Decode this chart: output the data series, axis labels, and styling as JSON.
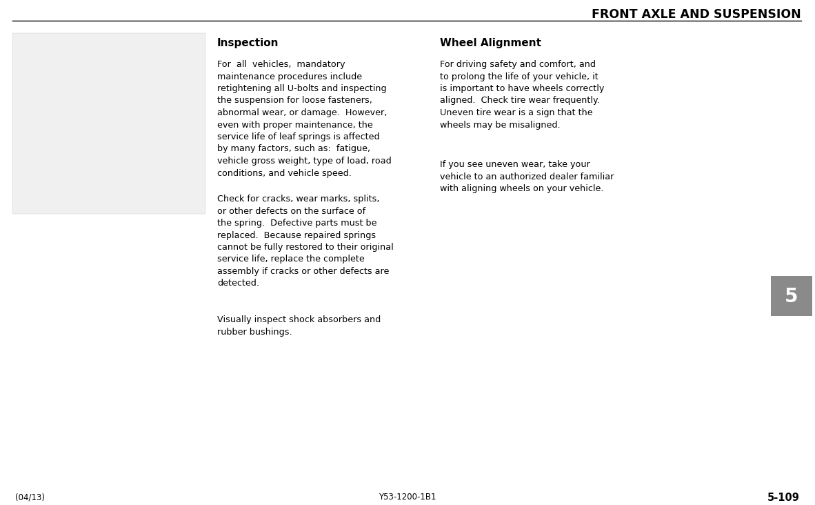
{
  "title": "FRONT AXLE AND SUSPENSION",
  "title_color": "#000000",
  "background_color": "#ffffff",
  "header_line_color": "#000000",
  "section1_heading": "Inspection",
  "section2_heading": "Wheel Alignment",
  "section1_para1": "For  all  vehicles,  mandatory\nmaintenance procedures include\nretightening all U-bolts and inspecting\nthe suspension for loose fasteners,\nabnormal wear, or damage.  However,\neven with proper maintenance, the\nservice life of leaf springs is affected\nby many factors, such as:  fatigue,\nvehicle gross weight, type of load, road\nconditions, and vehicle speed.",
  "section1_para2": "Check for cracks, wear marks, splits,\nor other defects on the surface of\nthe spring.  Defective parts must be\nreplaced.  Because repaired springs\ncannot be fully restored to their original\nservice life, replace the complete\nassembly if cracks or other defects are\ndetected.",
  "section1_para3": "Visually inspect shock absorbers and\nrubber bushings.",
  "section2_para1": "For driving safety and comfort, and\nto prolong the life of your vehicle, it\nis important to have wheels correctly\naligned.  Check tire wear frequently.\nUneven tire wear is a sign that the\nwheels may be misaligned.",
  "section2_para2": "If you see uneven wear, take your\nvehicle to an authorized dealer familiar\nwith aligning wheels on your vehicle.",
  "footer_left": "(04/13)",
  "footer_center": "Y53-1200-1B1",
  "footer_right": "5-109",
  "chapter_number": "5",
  "chapter_box_color": "#8a8a8a",
  "chapter_text_color": "#ffffff",
  "title_fontsize": 12.5,
  "text_fontsize": 9.2,
  "heading_fontsize": 11,
  "footer_fontsize": 8.5,
  "chapter_fontsize": 20
}
